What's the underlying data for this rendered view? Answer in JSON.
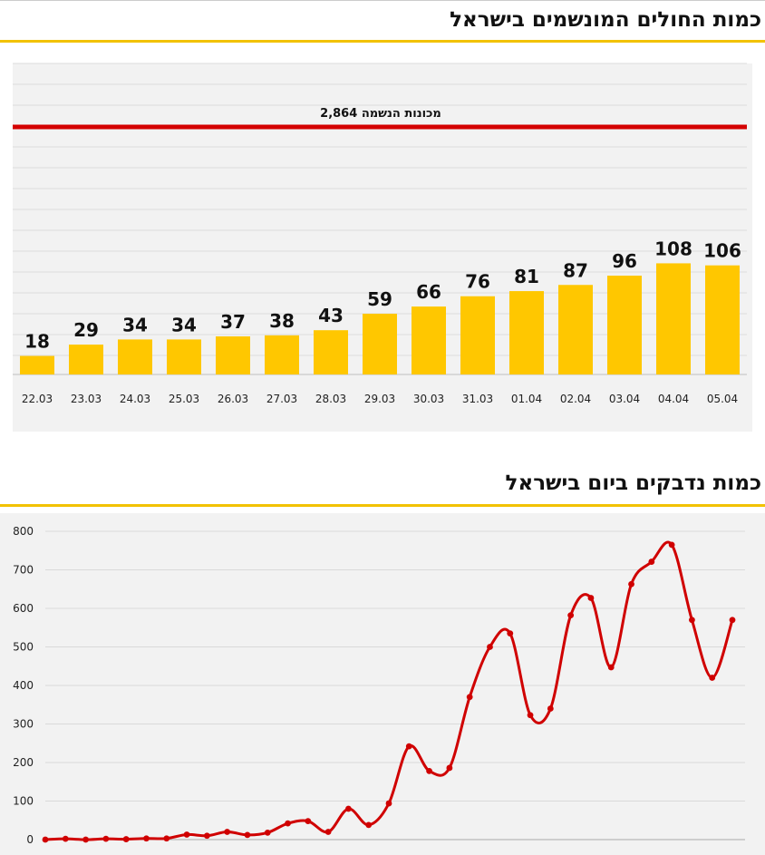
{
  "colors": {
    "accent": "#f2c200",
    "bar": "#ffc700",
    "line": "#d00000",
    "ref_line": "#d40000",
    "panel_bg": "#f2f2f2",
    "grid": "#d9d9d9"
  },
  "section1": {
    "title": "כמות החולים המונשמים בישראל"
  },
  "section2": {
    "title": "כמות נדבקים ביום בישראל"
  },
  "chart_data": [
    {
      "type": "bar",
      "title": "כמות החולים המונשמים בישראל",
      "categories": [
        "22.03",
        "23.03",
        "24.03",
        "25.03",
        "26.03",
        "27.03",
        "28.03",
        "29.03",
        "30.03",
        "31.03",
        "01.04",
        "02.04",
        "03.04",
        "04.04",
        "05.04"
      ],
      "values": [
        18,
        29,
        34,
        34,
        37,
        38,
        43,
        59,
        66,
        76,
        81,
        87,
        96,
        108,
        106
      ],
      "reference_line": {
        "value": 2864,
        "label": "2,864 מכונות הנשמה"
      },
      "xlabel": "",
      "ylabel": "",
      "grid": true
    },
    {
      "type": "line",
      "title": "כמות נדבקים ביום בישראל",
      "x": [
        1,
        2,
        3,
        4,
        5,
        6,
        7,
        8,
        9,
        10,
        11,
        12,
        13,
        14,
        15,
        16,
        17,
        18,
        19,
        20,
        21,
        22,
        23,
        24,
        25,
        26,
        27,
        28,
        29,
        30,
        31,
        32,
        33,
        34,
        35
      ],
      "values": [
        0,
        2,
        0,
        2,
        1,
        3,
        3,
        13,
        10,
        20,
        12,
        18,
        42,
        48,
        20,
        80,
        38,
        94,
        242,
        178,
        186,
        370,
        500,
        535,
        323,
        340,
        582,
        627,
        447,
        663,
        721,
        765,
        570,
        420,
        570
      ],
      "ylim": [
        0,
        800
      ],
      "yticks": [
        "0",
        "100",
        "200",
        "300",
        "400",
        "500",
        "600",
        "700",
        "800"
      ],
      "xlabel": "",
      "ylabel": "",
      "grid": true,
      "smooth": true
    }
  ]
}
